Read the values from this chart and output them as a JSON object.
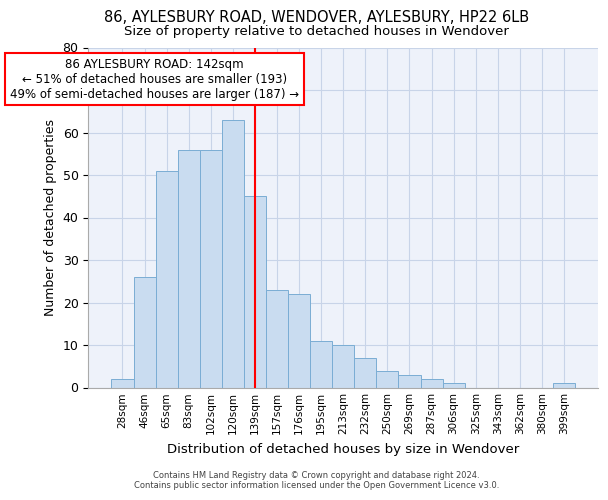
{
  "title_line1": "86, AYLESBURY ROAD, WENDOVER, AYLESBURY, HP22 6LB",
  "title_line2": "Size of property relative to detached houses in Wendover",
  "xlabel": "Distribution of detached houses by size in Wendover",
  "ylabel": "Number of detached properties",
  "footer_line1": "Contains HM Land Registry data © Crown copyright and database right 2024.",
  "footer_line2": "Contains public sector information licensed under the Open Government Licence v3.0.",
  "bar_labels": [
    "28sqm",
    "46sqm",
    "65sqm",
    "83sqm",
    "102sqm",
    "120sqm",
    "139sqm",
    "157sqm",
    "176sqm",
    "195sqm",
    "213sqm",
    "232sqm",
    "250sqm",
    "269sqm",
    "287sqm",
    "306sqm",
    "325sqm",
    "343sqm",
    "362sqm",
    "380sqm",
    "399sqm"
  ],
  "bar_values": [
    2,
    26,
    51,
    56,
    56,
    63,
    45,
    23,
    22,
    11,
    10,
    7,
    4,
    3,
    2,
    1,
    0,
    0,
    0,
    0,
    1
  ],
  "bar_color": "#c9dcf0",
  "bar_edge_color": "#7aadd4",
  "vline_index": 6,
  "vline_color": "red",
  "annotation_line1": "86 AYLESBURY ROAD: 142sqm",
  "annotation_line2": "← 51% of detached houses are smaller (193)",
  "annotation_line3": "49% of semi-detached houses are larger (187) →",
  "annotation_box_color": "red",
  "ylim": [
    0,
    80
  ],
  "yticks": [
    0,
    10,
    20,
    30,
    40,
    50,
    60,
    70,
    80
  ],
  "grid_color": "#c8d4e8",
  "bg_color": "#eef2fa",
  "title_fontsize": 10.5,
  "subtitle_fontsize": 9.5,
  "annotation_fontsize": 8.5,
  "ylabel_fontsize": 9,
  "xlabel_fontsize": 9.5
}
